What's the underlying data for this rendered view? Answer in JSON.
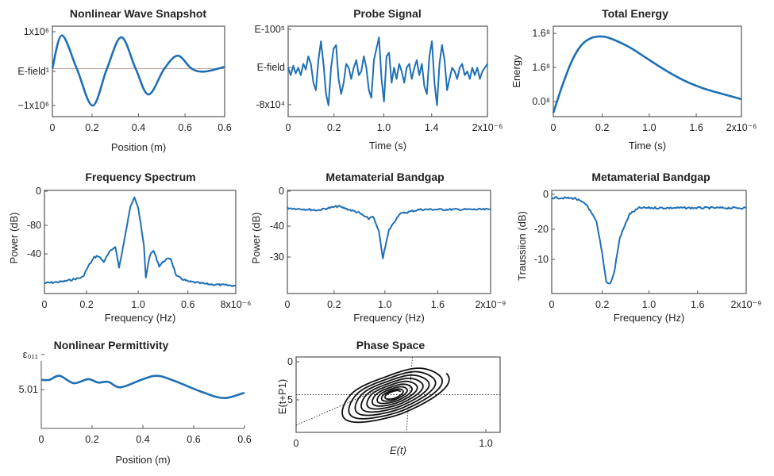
{
  "colors": {
    "line": "#1f6fb5",
    "phase": "#111111",
    "axis": "#555555"
  },
  "chart_data": [
    {
      "id": "p1",
      "type": "line",
      "title": "Nonlinear Wave Snapshot",
      "xlabel": "Position (m)",
      "ylabel": "",
      "xticks": [
        "0",
        "0.2",
        "0.4",
        "0.6",
        "0.6"
      ],
      "yticks": [
        "1x10⁶",
        "E-field¹",
        "−1x10⁶"
      ],
      "xlim": [
        0,
        0.6
      ],
      "ylim": [
        -1300000.0,
        1150000.0
      ],
      "smooth": true,
      "zero_line": true,
      "x": [
        0,
        0.033,
        0.085,
        0.14,
        0.19,
        0.24,
        0.29,
        0.335,
        0.39,
        0.437,
        0.485,
        0.53,
        0.6
      ],
      "y": [
        0,
        900000,
        0,
        -1000000,
        0,
        850000,
        0,
        -700000,
        0,
        350000,
        0,
        -80000,
        50000
      ]
    },
    {
      "id": "p2",
      "type": "line",
      "title": "Probe Signal",
      "xlabel": "Time (s)",
      "ylabel": "",
      "xticks": [
        "0",
        "0.2",
        "1.0",
        "1.4",
        "2x10⁻⁶"
      ],
      "yticks": [
        "E-100⁵",
        "E-field",
        "-8x10⁴"
      ],
      "xlim": [
        0,
        2e-06
      ],
      "ylim": [
        -1.2,
        1.2
      ],
      "y": [
        0.1,
        -0.1,
        0.15,
        -0.05,
        0.1,
        -0.1,
        0.2,
        0.05,
        0.4,
        0.2,
        -0.3,
        -0.5,
        0.3,
        0.8,
        0.2,
        -0.6,
        -0.9,
        0.1,
        0.6,
        0.7,
        -0.2,
        -0.6,
        -0.3,
        0.2,
        0.1,
        -0.2,
        0.1,
        0.3,
        -0.1,
        0.0,
        0.4,
        0.1,
        -0.5,
        -0.7,
        0.3,
        0.6,
        0.9,
        -0.2,
        -0.8,
        0.4,
        0.5,
        -0.3,
        0.1,
        -0.2,
        0.2,
        0.0,
        -0.3,
        0.1,
        0.2,
        -0.2,
        0.1,
        0.3,
        -0.1,
        0.2,
        -0.4,
        -0.6,
        0.4,
        0.8,
        -0.3,
        -0.9,
        0.2,
        0.7,
        0.3,
        -0.5,
        -0.2,
        0.1,
        0.0,
        -0.2,
        0.1,
        0.2,
        -0.1,
        0.0,
        -0.2,
        0.1,
        -0.1,
        0.1,
        -0.2,
        0.0,
        0.1,
        0.2
      ]
    },
    {
      "id": "p3",
      "type": "line",
      "title": "Total Energy",
      "xlabel": "Time (s)",
      "ylabel": "Energy",
      "xticks": [
        "0",
        "0.2",
        "1.0",
        "1.6",
        "2x10⁻⁶"
      ],
      "yticks": [
        "1.6⁸",
        "1.6⁸",
        "0.0⁸"
      ],
      "xlim": [
        0,
        2e-06
      ],
      "ylim": [
        -0.44,
        2.2
      ],
      "smooth": true,
      "x": [
        0,
        1e-07,
        2e-07,
        3e-07,
        4e-07,
        5e-07,
        6e-07,
        8e-07,
        1e-06,
        1.2e-06,
        1.4e-06,
        1.6e-06,
        1.8e-06,
        2e-06
      ],
      "y": [
        -0.33,
        0.5,
        1.2,
        1.65,
        1.85,
        1.9,
        1.85,
        1.6,
        1.25,
        0.9,
        0.6,
        0.38,
        0.22,
        0.07
      ]
    },
    {
      "id": "p4",
      "type": "line",
      "title": "Frequency Spectrum",
      "xlabel": "Frequency (Hz)",
      "ylabel": "Power (dB)",
      "xticks": [
        "0",
        "0.2",
        "1.0",
        "0.6",
        "8x10⁻⁶"
      ],
      "yticks": [
        "0",
        "-80",
        "-40"
      ],
      "xlim": [
        0,
        8e-06
      ],
      "ylim": [
        -120,
        0
      ],
      "noisy": true,
      "x": [
        0,
        8e-07,
        1.6e-06,
        1.84e-06,
        2.08e-06,
        2.24e-06,
        2.48e-06,
        2.72e-06,
        2.96e-06,
        3.12e-06,
        3.36e-06,
        3.6e-06,
        3.76e-06,
        3.92e-06,
        4.16e-06,
        4.24e-06,
        4.4e-06,
        4.56e-06,
        4.8e-06,
        5.04e-06,
        5.28e-06,
        5.52e-06,
        6e-06,
        6.8e-06,
        8e-06
      ],
      "y": [
        -108,
        -106,
        -101,
        -88,
        -78,
        -76,
        -83,
        -72,
        -65,
        -90,
        -55,
        -18,
        -7,
        -20,
        -65,
        -101,
        -76,
        -70,
        -88,
        -81,
        -79,
        -100,
        -106,
        -109,
        -111
      ]
    },
    {
      "id": "p5",
      "type": "line",
      "title": "Metamaterial Bandgap",
      "xlabel": "Frequency (Hz)",
      "ylabel": "Power (dB)",
      "xticks": [
        "0",
        "0.2",
        "1.0",
        "1.6",
        "2x10⁻⁹"
      ],
      "yticks": [
        "0",
        "-40",
        "-30"
      ],
      "xlim": [
        0,
        2e-09
      ],
      "ylim": [
        -60,
        0
      ],
      "noisy": true,
      "x": [
        0,
        3e-10,
        5e-10,
        7e-10,
        8e-10,
        8.4e-10,
        9e-10,
        9.4e-10,
        1e-09,
        1.1e-09,
        1.3e-09,
        2e-09
      ],
      "y": [
        -10.2,
        -11.5,
        -9.2,
        -12.9,
        -16.6,
        -14.8,
        -24,
        -39.2,
        -23.1,
        -13.8,
        -11.1,
        -11.1
      ]
    },
    {
      "id": "p6",
      "type": "line",
      "title": "Metamaterial Bandgap",
      "xlabel": "Frequency (Hz)",
      "ylabel": "Traussiion (dB)",
      "xticks": [
        "0",
        "0.2",
        "1.0",
        "1.6",
        "2x10⁻⁹"
      ],
      "yticks": [
        "0",
        "-20",
        "-10"
      ],
      "xlim": [
        0,
        2e-09
      ],
      "ylim": [
        -30,
        0
      ],
      "noisy": true,
      "x": [
        0,
        2.4e-10,
        3.6e-10,
        4.6e-10,
        5.2e-10,
        5.6e-10,
        6e-10,
        6.4e-10,
        7e-10,
        8e-10,
        9e-10,
        1.1e-09,
        2e-09
      ],
      "y": [
        -2.1,
        -2.3,
        -4.2,
        -9.2,
        -18.5,
        -26.5,
        -27.2,
        -24.2,
        -13.8,
        -6.9,
        -5.1,
        -5.1,
        -5.1
      ]
    },
    {
      "id": "p7",
      "type": "line",
      "title": "Nonlinear Permittivity",
      "xlabel": "Position (m)",
      "ylabel": "",
      "xticks": [
        "0",
        "0.2",
        "0.4",
        "0.6",
        "0.6"
      ],
      "yticks": [
        "ε₀₁₁",
        "5.01"
      ],
      "xlim": [
        0,
        0.6
      ],
      "ylim": [
        0,
        1
      ],
      "smooth": true,
      "x": [
        0,
        0.024,
        0.054,
        0.096,
        0.138,
        0.168,
        0.198,
        0.234,
        0.3,
        0.342,
        0.39,
        0.48,
        0.54,
        0.6
      ],
      "y": [
        0.72,
        0.72,
        0.78,
        0.67,
        0.73,
        0.68,
        0.69,
        0.61,
        0.73,
        0.78,
        0.71,
        0.53,
        0.45,
        0.53
      ]
    },
    {
      "id": "p8",
      "type": "phase",
      "title": "Phase Space",
      "xlabel": "E(t)",
      "ylabel": "E(t+P1)",
      "xticks": [
        "0",
        "1.0"
      ],
      "yticks": [
        "0",
        "5"
      ],
      "xlim": [
        0,
        1.07
      ],
      "ylim": [
        10,
        0
      ],
      "spiral": {
        "center": [
          0.51,
          5
        ],
        "outer_radius": [
          0.3,
          3.1
        ],
        "inner_radius": [
          0.04,
          0.4
        ],
        "turns": 9,
        "tilt_deg": -22
      }
    }
  ]
}
